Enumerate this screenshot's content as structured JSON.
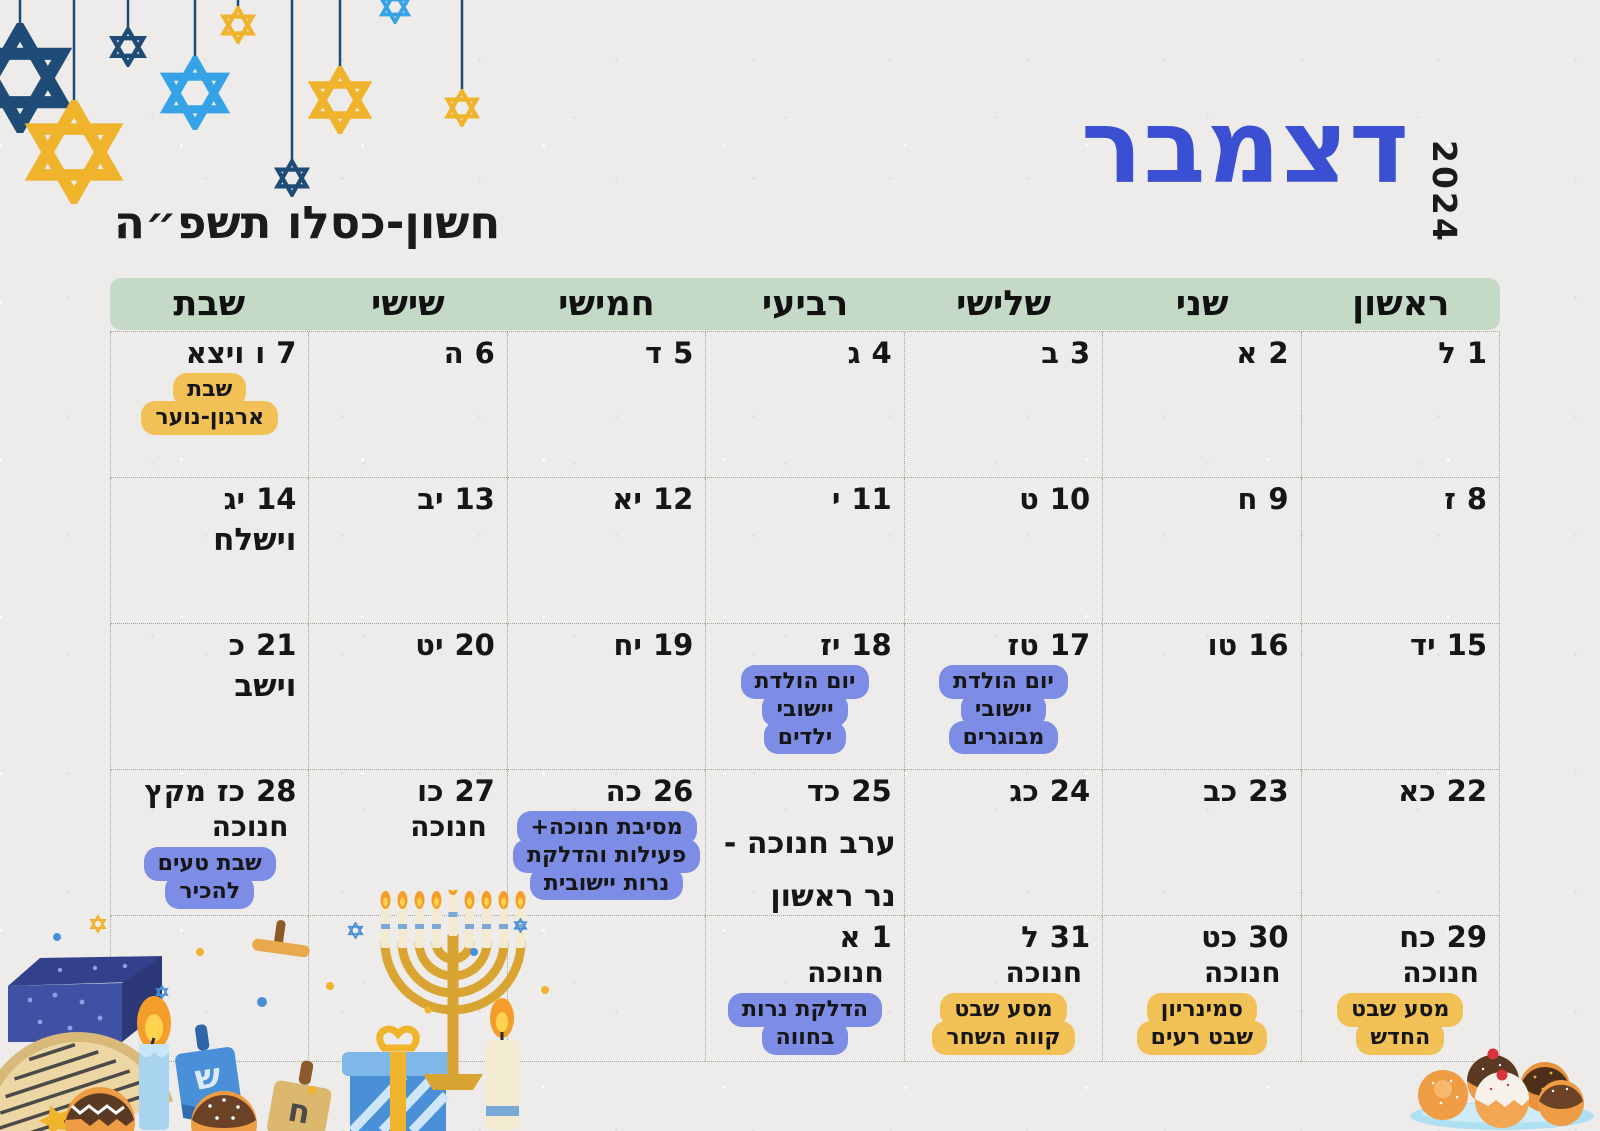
{
  "header": {
    "month_title": "דצמבר",
    "year": "2024",
    "hebrew_date_range": "חשון-כסלו תשפ״ה"
  },
  "colors": {
    "title_blue": "#3a4fd1",
    "weekday_band_green": "#c5d9c7",
    "badge_yellow": "#f2c155",
    "badge_blue": "#7d8de5",
    "paper": "#edecea"
  },
  "weekday_headers": [
    "ראשון",
    "שני",
    "שלישי",
    "רביעי",
    "חמישי",
    "שישי",
    "שבת"
  ],
  "weeks": [
    [
      {
        "num": "1",
        "heb": "ל"
      },
      {
        "num": "2",
        "heb": "א"
      },
      {
        "num": "3",
        "heb": "ב"
      },
      {
        "num": "4",
        "heb": "ג"
      },
      {
        "num": "5",
        "heb": "ד"
      },
      {
        "num": "6",
        "heb": "ה"
      },
      {
        "num": "7",
        "heb": "ו",
        "parsha": "ויצא",
        "events": [
          {
            "type": "badge_yellow",
            "lines": [
              "שבת",
              "ארגון-נוער"
            ]
          }
        ]
      }
    ],
    [
      {
        "num": "8",
        "heb": "ז"
      },
      {
        "num": "9",
        "heb": "ח"
      },
      {
        "num": "10",
        "heb": "ט"
      },
      {
        "num": "11",
        "heb": "י"
      },
      {
        "num": "12",
        "heb": "יא"
      },
      {
        "num": "13",
        "heb": "יב"
      },
      {
        "num": "14",
        "heb": "יג",
        "events": [
          {
            "type": "parsha",
            "lines": [
              "וישלח"
            ]
          }
        ]
      }
    ],
    [
      {
        "num": "15",
        "heb": "יד"
      },
      {
        "num": "16",
        "heb": "טו"
      },
      {
        "num": "17",
        "heb": "טז",
        "events": [
          {
            "type": "badge_blue",
            "lines": [
              "יום הולדת",
              "יישובי",
              "מבוגרים"
            ]
          }
        ]
      },
      {
        "num": "18",
        "heb": "יז",
        "events": [
          {
            "type": "badge_blue",
            "lines": [
              "יום הולדת",
              "יישובי",
              "ילדים"
            ]
          }
        ]
      },
      {
        "num": "19",
        "heb": "יח"
      },
      {
        "num": "20",
        "heb": "יט"
      },
      {
        "num": "21",
        "heb": "כ",
        "events": [
          {
            "type": "parsha",
            "lines": [
              "וישב"
            ]
          }
        ]
      }
    ],
    [
      {
        "num": "22",
        "heb": "כא"
      },
      {
        "num": "23",
        "heb": "כב"
      },
      {
        "num": "24",
        "heb": "כג"
      },
      {
        "num": "25",
        "heb": "כד",
        "events": [
          {
            "type": "big",
            "lines": [
              "ערב חנוכה -",
              "נר ראשון"
            ]
          }
        ]
      },
      {
        "num": "26",
        "heb": "כה",
        "events": [
          {
            "type": "badge_blue",
            "lines": [
              "מסיבת חנוכה+",
              "פעילות והדלקת",
              "נרות יישובית"
            ]
          }
        ]
      },
      {
        "num": "27",
        "heb": "כו",
        "events": [
          {
            "type": "holiday",
            "lines": [
              "חנוכה"
            ]
          }
        ]
      },
      {
        "num": "28",
        "heb": "כז",
        "parsha": "מקץ",
        "events": [
          {
            "type": "holiday",
            "lines": [
              "חנוכה"
            ]
          },
          {
            "type": "badge_blue",
            "lines": [
              "שבת טעים",
              "להכיר"
            ]
          }
        ]
      }
    ],
    [
      {
        "num": "29",
        "heb": "כח",
        "events": [
          {
            "type": "holiday",
            "lines": [
              "חנוכה"
            ]
          },
          {
            "type": "badge_yellow",
            "lines": [
              "מסע שבט",
              "החדש"
            ]
          }
        ]
      },
      {
        "num": "30",
        "heb": "כט",
        "events": [
          {
            "type": "holiday",
            "lines": [
              "חנוכה"
            ]
          },
          {
            "type": "badge_yellow",
            "lines": [
              "סמינריון",
              "שבט רעים"
            ]
          }
        ]
      },
      {
        "num": "31",
        "heb": "ל",
        "events": [
          {
            "type": "holiday",
            "lines": [
              "חנוכה"
            ]
          },
          {
            "type": "badge_yellow",
            "lines": [
              "מסע שבט",
              "קווה השחר"
            ]
          }
        ]
      },
      {
        "num": "1",
        "heb": "א",
        "events": [
          {
            "type": "holiday",
            "lines": [
              "חנוכה"
            ]
          },
          {
            "type": "badge_blue",
            "lines": [
              "הדלקת נרות",
              "בחווה"
            ]
          }
        ]
      },
      null,
      null,
      null
    ]
  ],
  "decorations": [
    "hanging-star-of-david-ornaments",
    "hanukkah-clipart-menorah-dreidels-gifts-candles-donuts",
    "sufganiyot-donut-plate"
  ]
}
